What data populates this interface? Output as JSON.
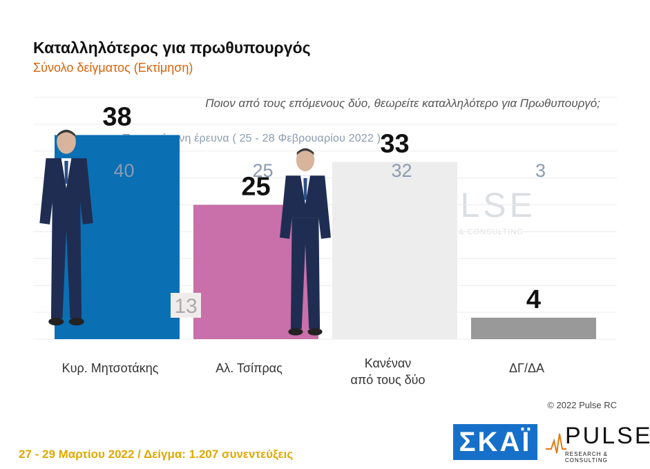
{
  "chart_data": {
    "type": "bar",
    "title": "Καταλληλότερος για πρωθυπουργός",
    "subtitle": "Σύνολο δείγματος   (Εκτίμηση)",
    "question": "Ποιον από τους επόμενους δύο, θεωρείτε καταλληλότερο για Πρωθυπουργό;",
    "previous_label": "Προηγούμενη έρευνα   ( 25 - 28 Φεβρουαρίου  2022 )",
    "categories": [
      [
        "Κυρ. Μητσοτάκης"
      ],
      [
        "Αλ. Τσίπρας"
      ],
      [
        "Κανέναν",
        "από τους δύο"
      ],
      [
        "ΔΓ/ΔΑ"
      ]
    ],
    "values": [
      38,
      25,
      33,
      4
    ],
    "previous_values": [
      "40",
      "25",
      "32",
      "3"
    ],
    "difference_label": "13",
    "colors": [
      "#0b6fb4",
      "#c96fa9",
      "#ededed",
      "#999999"
    ],
    "ylim": [
      0,
      45
    ],
    "grid": true
  },
  "copyright": "© 2022 Pulse RC",
  "footer": "27 - 29  Μαρτίου  2022  /  Δείγμα:  1.207 συνεντεύξεις",
  "logos": {
    "skai": "ΣΚΑΪ",
    "pulse": "PULSE",
    "pulse_sub": "RESEARCH & CONSULTING"
  }
}
